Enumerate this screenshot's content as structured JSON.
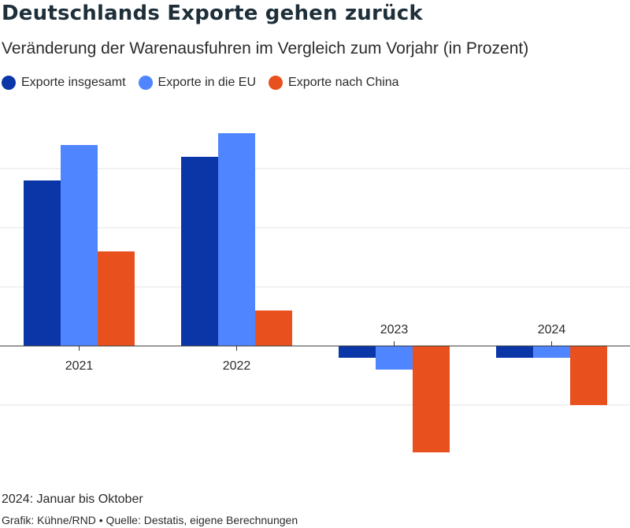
{
  "header": {
    "title": "Deutschlands Exporte gehen zurück",
    "subtitle": "Veränderung der Warenausfuhren im Vergleich zum Vorjahr (in Prozent)"
  },
  "footer": {
    "note": "2024: Januar bis Oktober",
    "source": "Grafik: Kühne/RND • Quelle: Destatis, eigene Berechnungen"
  },
  "chart_data": {
    "type": "bar",
    "title": "Deutschlands Exporte gehen zurück",
    "subtitle": "Veränderung der Warenausfuhren im Vergleich zum Vorjahr (in Prozent)",
    "categories": [
      "2021",
      "2022",
      "2023",
      "2024"
    ],
    "series": [
      {
        "name": "Exporte insgesamt",
        "color": "#0a36a8",
        "values": [
          14,
          16,
          -1,
          -1
        ]
      },
      {
        "name": "Exporte in die EU",
        "color": "#4f86ff",
        "values": [
          17,
          18,
          -2,
          -1
        ]
      },
      {
        "name": "Exporte nach China",
        "color": "#e8501e",
        "values": [
          8,
          3,
          -9,
          -5
        ]
      }
    ],
    "ylim": [
      -10,
      20
    ],
    "gridlines": [
      -5,
      0,
      5,
      10,
      15
    ],
    "grid": true,
    "y_tick_labels_shown": false,
    "legend_position": "top-left"
  }
}
